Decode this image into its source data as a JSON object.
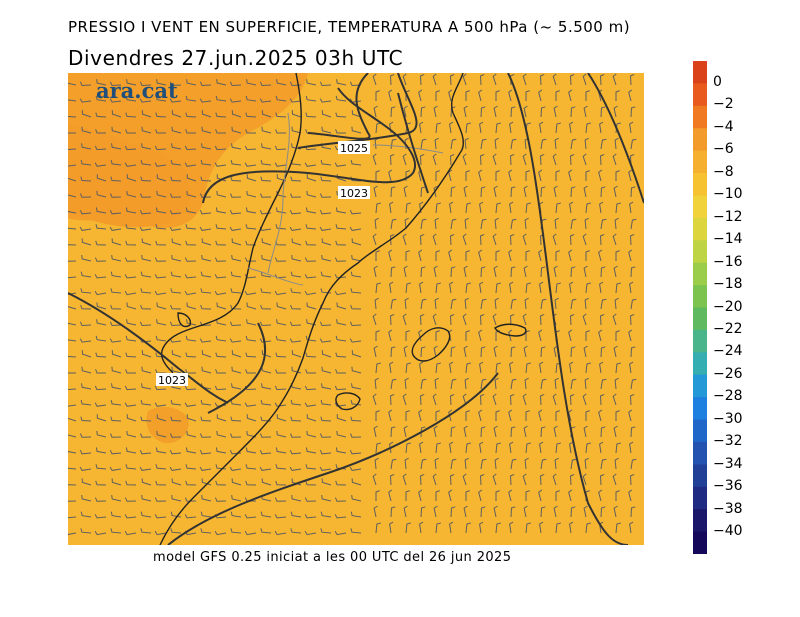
{
  "header": {
    "title": "PRESSIO I VENT EN SUPERFICIE, TEMPERATURA A 500 hPa (~ 5.500 m)",
    "subtitle": "Divendres  27.jun.2025 03h UTC"
  },
  "logo": {
    "text": "ara.cat"
  },
  "isobars": {
    "label_1025": "1025",
    "label_1023a": "1023",
    "label_1023b": "1023"
  },
  "colorbar": {
    "labels": [
      "0",
      "−2",
      "−4",
      "−6",
      "−8",
      "−10",
      "−12",
      "−14",
      "−16",
      "−18",
      "−20",
      "−22",
      "−24",
      "−26",
      "−28",
      "−30",
      "−32",
      "−34",
      "−36",
      "−38",
      "−40"
    ],
    "colors": [
      "#d9421a",
      "#e85a1e",
      "#f07a22",
      "#f29a2a",
      "#f4b02e",
      "#f6c232",
      "#f1d23a",
      "#dcd53c",
      "#bed445",
      "#9ccd4a",
      "#7cc34f",
      "#5fba5f",
      "#4ab58b",
      "#34aeb1",
      "#2399d8",
      "#1f7fe0",
      "#2065c8",
      "#2352b1",
      "#223f98",
      "#1f2b82",
      "#1a176b",
      "#14085a"
    ]
  },
  "map": {
    "background": "#f6b631",
    "warm_colors": [
      "#f39d2a",
      "#f4a62c"
    ]
  },
  "footer": {
    "text": "model GFS 0.25 iniciat a les 00 UTC del 26 jun 2025"
  }
}
